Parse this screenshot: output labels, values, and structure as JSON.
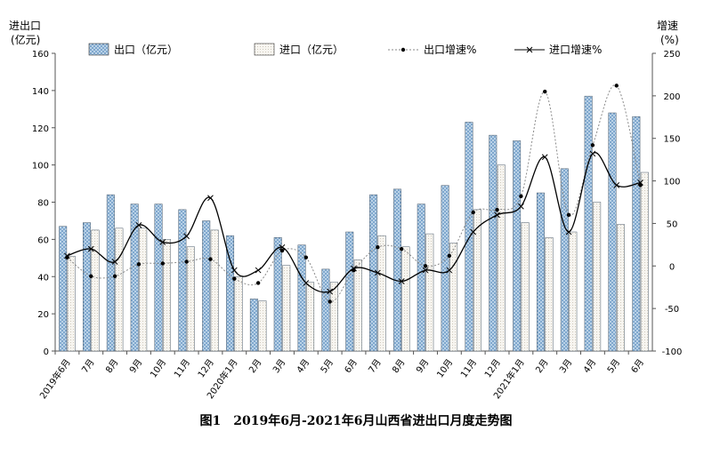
{
  "chart_data": {
    "type": "bar",
    "title": "图1　2019年6月-2021年6月山西省进出口月度走势图",
    "ylabel_left": "进出口\n(亿元)",
    "ylabel_right": "增速\n(%)",
    "ylim_left": [
      0,
      160
    ],
    "yticks_left": [
      0,
      20,
      40,
      60,
      80,
      100,
      120,
      140,
      160
    ],
    "ylim_right": [
      -100,
      250
    ],
    "yticks_right": [
      -100,
      -50,
      0,
      50,
      100,
      150,
      200,
      250
    ],
    "grid": false,
    "legend_position": "top",
    "categories": [
      "2019年6月",
      "7月",
      "8月",
      "9月",
      "10月",
      "11月",
      "12月",
      "2020年1月",
      "2月",
      "3月",
      "4月",
      "5月",
      "6月",
      "7月",
      "8月",
      "9月",
      "10月",
      "11月",
      "12月",
      "2021年1月",
      "2月",
      "3月",
      "4月",
      "5月",
      "6月"
    ],
    "series": [
      {
        "name": "出口（亿元）",
        "kind": "bar",
        "axis": "left",
        "color": "#8fb4d6",
        "values": [
          67,
          69,
          84,
          79,
          79,
          76,
          70,
          62,
          28,
          61,
          57,
          44,
          64,
          84,
          87,
          79,
          89,
          123,
          116,
          113,
          85,
          98,
          137,
          128,
          126
        ]
      },
      {
        "name": "进口（亿元）",
        "kind": "bar",
        "axis": "left",
        "color": "#f4f1ea",
        "values": [
          51,
          65,
          66,
          66,
          60,
          56,
          65,
          40,
          27,
          46,
          37,
          37,
          49,
          62,
          56,
          63,
          58,
          76,
          100,
          69,
          61,
          64,
          80,
          68,
          96
        ]
      },
      {
        "name": "出口增速%",
        "kind": "line",
        "axis": "right",
        "color": "#8a8a8a",
        "marker": "dot",
        "values": [
          10,
          -12,
          -12,
          2,
          3,
          5,
          8,
          -15,
          -20,
          18,
          10,
          -42,
          -5,
          22,
          20,
          0,
          12,
          63,
          66,
          82,
          205,
          60,
          142,
          212,
          95
        ]
      },
      {
        "name": "进口增速%",
        "kind": "line",
        "axis": "right",
        "color": "#000000",
        "marker": "x",
        "values": [
          12,
          20,
          5,
          48,
          28,
          35,
          80,
          -5,
          -5,
          22,
          -20,
          -30,
          -3,
          -8,
          -18,
          -5,
          -5,
          40,
          60,
          70,
          128,
          40,
          132,
          95,
          98
        ]
      }
    ]
  }
}
